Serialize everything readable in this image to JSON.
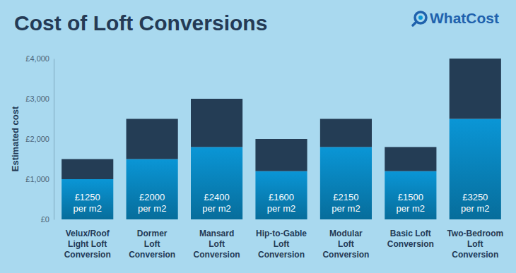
{
  "chart_data": {
    "type": "bar",
    "title": "Cost of Loft Conversions",
    "brand": "WhatCost",
    "y_label": "Estimated cost",
    "categories": [
      "Velux/Roof\nLight Loft\nConversion",
      "Dormer\nLoft\nConversion",
      "Mansard\nLoft\nConversion",
      "Hip-to-Gable\nLoft\nConversion",
      "Modular\nLoft\nConversion",
      "Basic Loft\nConversion",
      "Two-Bedroom\nLoft\nConversion"
    ],
    "stacked": true,
    "series": [
      {
        "color": "#0a96d6",
        "values": [
          1000,
          1500,
          1800,
          1200,
          1800,
          1200,
          2500
        ]
      },
      {
        "color": "#243d55",
        "values": [
          500,
          1000,
          1200,
          800,
          700,
          600,
          1500
        ]
      }
    ],
    "annotations": [
      "£1250 per m2",
      "£2000 per m2",
      "£2400 per m2",
      "£1600 per m2",
      "£2150 per m2",
      "£1500 per m2",
      "£3250 per m2"
    ],
    "ylim": [
      0,
      4000
    ],
    "yticks": [
      {
        "value": 0,
        "label": "£0"
      },
      {
        "value": 1000,
        "label": "£1,000"
      },
      {
        "value": 2000,
        "label": "£2,000"
      },
      {
        "value": 3000,
        "label": "£3,000"
      },
      {
        "value": 4000,
        "label": "£4,000"
      }
    ],
    "grid": false
  }
}
